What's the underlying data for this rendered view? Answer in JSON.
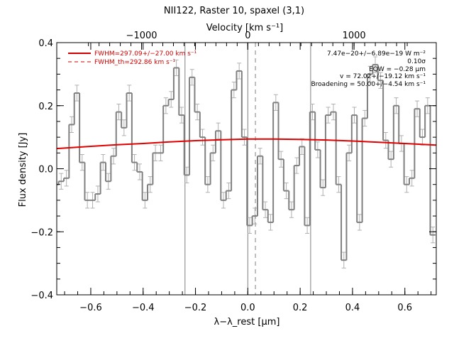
{
  "chart_data": {
    "type": "line",
    "title": "NII122, Raster 10, spaxel (3,1)",
    "xlabel": "λ−λ_rest [μm]",
    "ylabel": "Flux density [Jy]",
    "top_xlabel": "Velocity [km s⁻¹]",
    "xlim": [
      -0.73,
      0.72
    ],
    "ylim": [
      -0.4,
      0.4
    ],
    "grid": false,
    "x_ticks": [
      "−0.6",
      "−0.4",
      "−0.2",
      "0.0",
      "0.2",
      "0.4",
      "0.6"
    ],
    "x_tick_values": [
      -0.6,
      -0.4,
      -0.2,
      0.0,
      0.2,
      0.4,
      0.6
    ],
    "y_ticks": [
      "0.4",
      "0.2",
      "0.0",
      "−0.2",
      "−0.4"
    ],
    "y_tick_values": [
      0.4,
      0.2,
      0.0,
      -0.2,
      -0.4
    ],
    "top_ticks": [
      "−1000",
      "0",
      "1000"
    ],
    "top_tick_values": [
      -1000,
      0,
      1000
    ],
    "legend": {
      "placement": "top-left",
      "entries": [
        {
          "label": "FWHM=297.09+/−27.00 km s⁻¹",
          "style": "solid",
          "color": "#d00000"
        },
        {
          "label": "FWHM_th=292.86 km s⁻¹",
          "style": "dashed",
          "color": "#d00000"
        }
      ]
    },
    "annotations": [
      "7.47e−20+/−6.89e−19 W m⁻²",
      "0.10σ",
      "EQW = −0.28 μm",
      "v = 72.02+/−19.12 km s⁻¹",
      "Broadening = 50.00+/−4.54 km s⁻¹"
    ],
    "vertical_lines": [
      {
        "x": -0.24,
        "style": "solid"
      },
      {
        "x": 0.0,
        "style": "solid"
      },
      {
        "x": 0.029,
        "style": "dashed"
      },
      {
        "x": 0.24,
        "style": "solid"
      }
    ],
    "series": [
      {
        "name": "",
        "kind": "histogram",
        "color": "#808080",
        "x": [
          -0.733,
          -0.713,
          -0.693,
          -0.673,
          -0.653,
          -0.633,
          -0.613,
          -0.593,
          -0.573,
          -0.553,
          -0.533,
          -0.513,
          -0.493,
          -0.473,
          -0.453,
          -0.433,
          -0.413,
          -0.393,
          -0.373,
          -0.353,
          -0.333,
          -0.313,
          -0.293,
          -0.273,
          -0.253,
          -0.233,
          -0.213,
          -0.193,
          -0.173,
          -0.153,
          -0.133,
          -0.113,
          -0.093,
          -0.073,
          -0.053,
          -0.033,
          -0.013,
          0.007,
          0.027,
          0.047,
          0.067,
          0.087,
          0.107,
          0.127,
          0.147,
          0.167,
          0.187,
          0.207,
          0.227,
          0.247,
          0.267,
          0.287,
          0.307,
          0.327,
          0.347,
          0.367,
          0.387,
          0.407,
          0.427,
          0.447,
          0.467,
          0.487,
          0.507,
          0.527,
          0.547,
          0.567,
          0.587,
          0.607,
          0.627,
          0.647,
          0.667,
          0.687,
          0.707
        ],
        "values": [
          -0.05,
          -0.04,
          -0.03,
          0.14,
          0.24,
          0.02,
          -0.1,
          -0.1,
          -0.08,
          0.02,
          -0.04,
          0.04,
          0.18,
          0.13,
          0.24,
          0.02,
          -0.01,
          -0.1,
          -0.05,
          0.05,
          0.05,
          0.2,
          0.22,
          0.32,
          0.17,
          -0.02,
          0.29,
          0.18,
          0.1,
          -0.05,
          0.05,
          0.12,
          -0.1,
          -0.07,
          0.25,
          0.31,
          0.1,
          -0.18,
          -0.15,
          0.04,
          -0.13,
          -0.17,
          0.21,
          0.03,
          -0.07,
          -0.13,
          0.01,
          0.07,
          -0.18,
          0.18,
          0.06,
          -0.06,
          0.17,
          0.18,
          -0.05,
          -0.29,
          0.05,
          0.17,
          -0.17,
          0.16,
          0.3,
          0.33,
          0.28,
          0.09,
          0.03,
          0.2,
          0.08,
          -0.05,
          -0.03,
          0.19,
          0.1,
          0.2,
          -0.21
        ],
        "errors": [
          0.025,
          0.025,
          0.025,
          0.025,
          0.025,
          0.025,
          0.025,
          0.025,
          0.025,
          0.025,
          0.025,
          0.025,
          0.025,
          0.025,
          0.025,
          0.025,
          0.025,
          0.025,
          0.025,
          0.025,
          0.025,
          0.025,
          0.025,
          0.025,
          0.025,
          0.025,
          0.025,
          0.025,
          0.025,
          0.025,
          0.025,
          0.025,
          0.025,
          0.025,
          0.025,
          0.025,
          0.025,
          0.025,
          0.025,
          0.025,
          0.025,
          0.025,
          0.025,
          0.025,
          0.025,
          0.025,
          0.025,
          0.025,
          0.025,
          0.025,
          0.025,
          0.025,
          0.025,
          0.025,
          0.025,
          0.025,
          0.025,
          0.025,
          0.025,
          0.025,
          0.025,
          0.025,
          0.025,
          0.025,
          0.025,
          0.025,
          0.025,
          0.025,
          0.025,
          0.025,
          0.025,
          0.025,
          0.025
        ]
      },
      {
        "name": "FWHM=297.09+/−27.00 km s⁻¹",
        "kind": "fit",
        "color": "#e00000",
        "x": [
          -0.73,
          -0.6,
          -0.5,
          -0.4,
          -0.3,
          -0.2,
          -0.1,
          0.0,
          0.03,
          0.1,
          0.2,
          0.3,
          0.4,
          0.5,
          0.6,
          0.72
        ],
        "values": [
          0.064,
          0.071,
          0.076,
          0.08,
          0.085,
          0.089,
          0.092,
          0.094,
          0.094,
          0.094,
          0.093,
          0.091,
          0.088,
          0.084,
          0.08,
          0.075
        ]
      }
    ]
  }
}
